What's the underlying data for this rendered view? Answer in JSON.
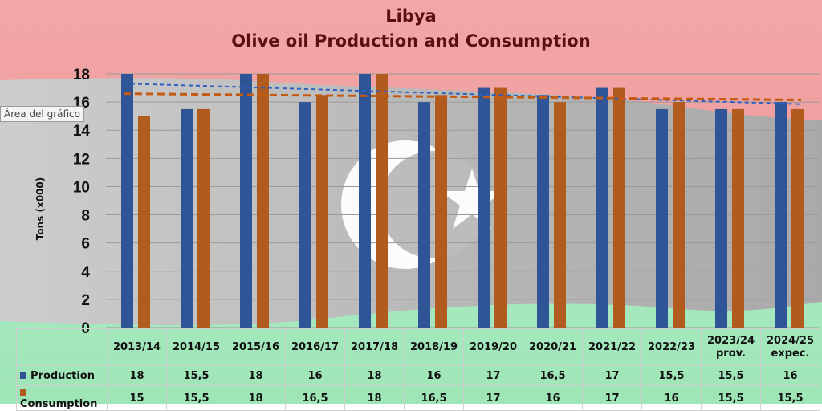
{
  "title_line1": "Libya",
  "title_line2": "Olive oil Production and Consumption",
  "tooltip": "Área del gráfico",
  "chart_data": {
    "type": "bar",
    "title": "Libya Olive oil Production and Consumption",
    "ylabel": "Tons (x000)",
    "ylim": [
      0,
      18
    ],
    "yticks": [
      0,
      2,
      4,
      6,
      8,
      10,
      12,
      14,
      16,
      18
    ],
    "grid": true,
    "categories": [
      "2013/14",
      "2014/15",
      "2015/16",
      "2016/17",
      "2017/18",
      "2018/19",
      "2019/20",
      "2020/21",
      "2021/22",
      "2022/23",
      "2023/24 prov.",
      "2024/25 expec."
    ],
    "category_lines": [
      [
        "2013/14"
      ],
      [
        "2014/15"
      ],
      [
        "2015/16"
      ],
      [
        "2016/17"
      ],
      [
        "2017/18"
      ],
      [
        "2018/19"
      ],
      [
        "2019/20"
      ],
      [
        "2020/21"
      ],
      [
        "2021/22"
      ],
      [
        "2022/23"
      ],
      [
        "2023/24",
        "prov."
      ],
      [
        "2024/25",
        "expec."
      ]
    ],
    "series": [
      {
        "name": "Production",
        "color": "#2f5596",
        "values": [
          18,
          15.5,
          18,
          16,
          18,
          16,
          17,
          16.5,
          17,
          15.5,
          15.5,
          16
        ]
      },
      {
        "name": "Consumption",
        "color": "#b15b1e",
        "values": [
          15,
          15.5,
          18,
          16.5,
          18,
          16.5,
          17,
          16,
          17,
          16,
          15.5,
          15.5
        ]
      }
    ],
    "trendlines": [
      {
        "series": "Production",
        "color": "#2f5fc0",
        "style": "dashed"
      },
      {
        "series": "Consumption",
        "color": "#c55a11",
        "style": "dashed"
      }
    ],
    "data_table": {
      "rows": [
        {
          "label": "Production",
          "values": [
            "18",
            "15,5",
            "18",
            "16",
            "18",
            "16",
            "17",
            "16,5",
            "17",
            "15,5",
            "15,5",
            "16"
          ]
        },
        {
          "label": "Consumption",
          "values": [
            "15",
            "15,5",
            "18",
            "16,5",
            "18",
            "16,5",
            "17",
            "16",
            "17",
            "16",
            "15,5",
            "15,5"
          ]
        }
      ]
    }
  }
}
